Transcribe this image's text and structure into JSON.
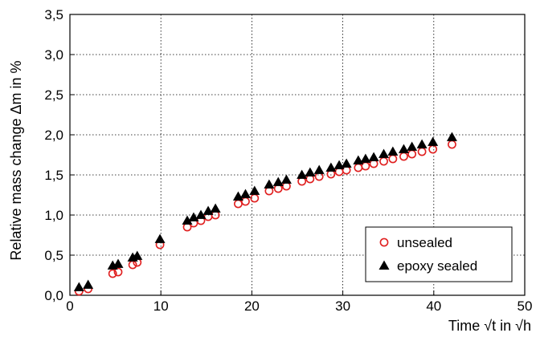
{
  "chart_data": {
    "type": "scatter",
    "xlabel": "Time √t in √h",
    "ylabel": "Relative mass change Δm in %",
    "xlim": [
      0,
      50
    ],
    "ylim": [
      0,
      3.5
    ],
    "x_ticks": [
      "0",
      "10",
      "20",
      "30",
      "40",
      "50"
    ],
    "y_ticks": [
      "0,0",
      "0,5",
      "1,0",
      "1,5",
      "2,0",
      "2,5",
      "3,0",
      "3,5"
    ],
    "grid": true,
    "legend_position": "bottom-right",
    "series": [
      {
        "name": "unsealed",
        "marker": "open-circle",
        "color": "#e02020",
        "points": [
          [
            1.0,
            0.05
          ],
          [
            2.0,
            0.08
          ],
          [
            4.7,
            0.27
          ],
          [
            5.3,
            0.29
          ],
          [
            6.9,
            0.38
          ],
          [
            7.4,
            0.41
          ],
          [
            9.9,
            0.63
          ],
          [
            12.9,
            0.85
          ],
          [
            13.6,
            0.9
          ],
          [
            14.4,
            0.93
          ],
          [
            15.2,
            0.98
          ],
          [
            16.0,
            1.0
          ],
          [
            18.5,
            1.14
          ],
          [
            19.3,
            1.17
          ],
          [
            20.3,
            1.21
          ],
          [
            21.9,
            1.3
          ],
          [
            22.9,
            1.33
          ],
          [
            23.8,
            1.36
          ],
          [
            25.5,
            1.42
          ],
          [
            26.4,
            1.45
          ],
          [
            27.4,
            1.48
          ],
          [
            28.7,
            1.51
          ],
          [
            29.6,
            1.54
          ],
          [
            30.4,
            1.56
          ],
          [
            31.7,
            1.59
          ],
          [
            32.5,
            1.61
          ],
          [
            33.4,
            1.64
          ],
          [
            34.5,
            1.67
          ],
          [
            35.5,
            1.7
          ],
          [
            36.7,
            1.73
          ],
          [
            37.6,
            1.76
          ],
          [
            38.7,
            1.79
          ],
          [
            39.9,
            1.82
          ],
          [
            42.0,
            1.88
          ]
        ]
      },
      {
        "name": "epoxy sealed",
        "marker": "filled-triangle",
        "color": "#000000",
        "points": [
          [
            1.0,
            0.1
          ],
          [
            2.0,
            0.13
          ],
          [
            4.7,
            0.37
          ],
          [
            5.3,
            0.39
          ],
          [
            6.9,
            0.47
          ],
          [
            7.4,
            0.49
          ],
          [
            9.9,
            0.7
          ],
          [
            12.9,
            0.93
          ],
          [
            13.6,
            0.97
          ],
          [
            14.4,
            1.0
          ],
          [
            15.2,
            1.05
          ],
          [
            16.0,
            1.08
          ],
          [
            18.5,
            1.23
          ],
          [
            19.3,
            1.26
          ],
          [
            20.3,
            1.3
          ],
          [
            21.9,
            1.38
          ],
          [
            22.9,
            1.41
          ],
          [
            23.8,
            1.44
          ],
          [
            25.5,
            1.5
          ],
          [
            26.4,
            1.53
          ],
          [
            27.4,
            1.56
          ],
          [
            28.7,
            1.59
          ],
          [
            29.6,
            1.62
          ],
          [
            30.4,
            1.64
          ],
          [
            31.7,
            1.68
          ],
          [
            32.5,
            1.7
          ],
          [
            33.4,
            1.72
          ],
          [
            34.5,
            1.76
          ],
          [
            35.5,
            1.79
          ],
          [
            36.7,
            1.82
          ],
          [
            37.6,
            1.85
          ],
          [
            38.7,
            1.88
          ],
          [
            39.9,
            1.91
          ],
          [
            42.0,
            1.97
          ]
        ]
      }
    ]
  }
}
